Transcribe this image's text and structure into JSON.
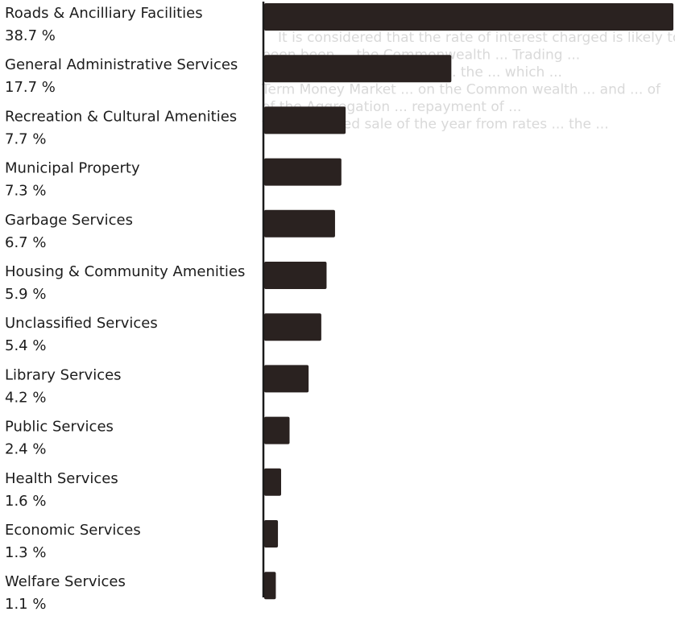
{
  "chart_data": {
    "type": "bar",
    "orientation": "horizontal",
    "categories": [
      "Roads & Ancilliary Facilities",
      "General Administrative Services",
      "Recreation & Cultural Amenities",
      "Municipal Property",
      "Garbage Services",
      "Housing & Community Amenities",
      "Unclassified Services",
      "Library Services",
      "Public Services",
      "Health Services",
      "Economic Services",
      "Welfare Services"
    ],
    "value_labels": [
      "38.7 %",
      "17.7 %",
      "7.7 %",
      "7.3 %",
      "6.7 %",
      "5.9 %",
      "5.4 %",
      "4.2 %",
      "2.4 %",
      "1.6 %",
      "1.3 %",
      "1.1 %"
    ],
    "values": [
      38.7,
      17.7,
      7.7,
      7.3,
      6.7,
      5.9,
      5.4,
      4.2,
      2.4,
      1.6,
      1.3,
      1.1
    ],
    "unit": "%",
    "xlim": [
      0,
      38.7
    ],
    "grid": false,
    "legend": "none",
    "colors": {
      "bar": "#2a2220",
      "axis": "#1a1a1a",
      "text": "#1c1c1c",
      "bleed_through": "#d9d9d9"
    }
  },
  "background_bleed_through": [
    "It is considered that the rate of interest charged is likely to",
    "been been ... the Commonwealth ... Trading ...",
    "continue to ... recorded in ... the ... which ...",
    "Term Money Market ... on the Common wealth ... and ... of",
    "of the Aggregation ... repayment of ...",
    "to be received sale of the year from rates ... the ..."
  ]
}
